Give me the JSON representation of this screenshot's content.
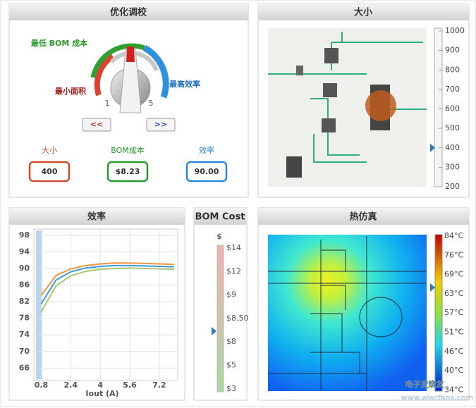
{
  "tuning": {
    "title": "优化调校",
    "labels": {
      "min_bom": "最低 BOM 成本",
      "min_area": "最小面积",
      "max_eff": "最高效率",
      "dial_min": "1",
      "dial_max": "5"
    },
    "buttons": [
      "<<",
      ">>"
    ],
    "metrics": [
      {
        "label": "大小",
        "value": 400
      },
      {
        "label": "BOM成本",
        "value": "$8.23"
      },
      {
        "label": "效率",
        "value": "90.00"
      }
    ]
  },
  "size": {
    "title": "大小",
    "scale_ticks": [
      1000,
      900,
      800,
      700,
      600,
      500,
      400,
      300,
      200
    ]
  },
  "chart_data": {
    "type": "line",
    "title": "效率",
    "xlabel": "Iout (A)",
    "x": [
      0.8,
      1.6,
      2.4,
      3.2,
      4,
      4.8,
      5.6,
      6.4,
      7.2,
      8.0
    ],
    "series": [
      {
        "color": "#f0963c",
        "values": [
          83.5,
          88.3,
          89.9,
          90.7,
          91.1,
          91.3,
          91.3,
          91.2,
          91.1,
          91.0
        ]
      },
      {
        "color": "#3c9ad8",
        "values": [
          81.5,
          87.2,
          89.2,
          90.1,
          90.5,
          90.7,
          90.7,
          90.6,
          90.5,
          90.4
        ]
      },
      {
        "color": "#a8c870",
        "values": [
          79.5,
          85.8,
          88.2,
          89.3,
          89.8,
          90.0,
          90.1,
          90.0,
          89.9,
          89.8
        ]
      }
    ],
    "xlim": [
      0.4,
      8.2
    ],
    "ylim": [
      63,
      99.5
    ],
    "xticks": [
      0.8,
      2.4,
      4,
      5.6,
      7.2
    ],
    "yticks": [
      66,
      70,
      74,
      78,
      82,
      86,
      90,
      94,
      98
    ],
    "grid": true
  },
  "bom": {
    "title": "BOM Cost",
    "unit": "$",
    "ticks": [
      "$14",
      "$12",
      "$9",
      "$8.50",
      "$8",
      "$5",
      "$3"
    ]
  },
  "thermal": {
    "title": "热仿真",
    "scale": [
      "84°C",
      "76°C",
      "69°C",
      "63°C",
      "57°C",
      "51°C",
      "46°C",
      "40°C",
      "34°C"
    ]
  },
  "watermark": {
    "name": "电子发烧友",
    "url": "www.elecfans.com"
  }
}
